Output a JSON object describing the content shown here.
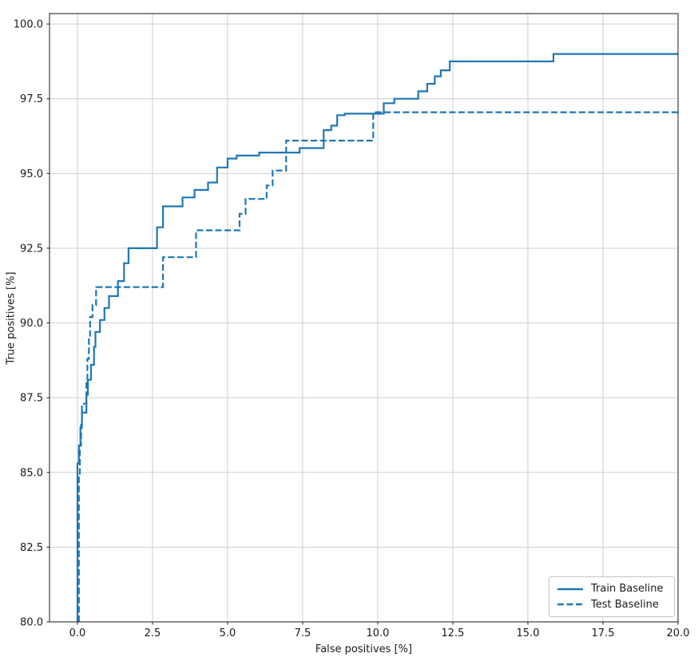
{
  "figure": {
    "xlabel": "False positives [%]",
    "ylabel": "True positives [%]"
  },
  "chart_data": {
    "type": "line",
    "title": "",
    "xlabel": "False positives [%]",
    "ylabel": "True positives [%]",
    "xlim": [
      -0.93,
      20
    ],
    "ylim": [
      80,
      100.35
    ],
    "grid": true,
    "grid_color": "#c9c9c9",
    "spine_color": "#1a1a1a",
    "color": "#1f77b4",
    "legend_position": "lower right",
    "xticks": [
      {
        "v": 0,
        "label": "0.0"
      },
      {
        "v": 2.5,
        "label": "2.5"
      },
      {
        "v": 5,
        "label": "5.0"
      },
      {
        "v": 7.5,
        "label": "7.5"
      },
      {
        "v": 10,
        "label": "10.0"
      },
      {
        "v": 12.5,
        "label": "12.5"
      },
      {
        "v": 15,
        "label": "15.0"
      },
      {
        "v": 17.5,
        "label": "17.5"
      },
      {
        "v": 20,
        "label": "20.0"
      }
    ],
    "yticks": [
      {
        "v": 80,
        "label": "80.0"
      },
      {
        "v": 82.5,
        "label": "82.5"
      },
      {
        "v": 85,
        "label": "85.0"
      },
      {
        "v": 87.5,
        "label": "87.5"
      },
      {
        "v": 90,
        "label": "90.0"
      },
      {
        "v": 92.5,
        "label": "92.5"
      },
      {
        "v": 95,
        "label": "95.0"
      },
      {
        "v": 97.5,
        "label": "97.5"
      },
      {
        "v": 100,
        "label": "100.0"
      }
    ],
    "series": [
      {
        "name": "Train Baseline",
        "style": "solid",
        "points": [
          [
            0,
            80
          ],
          [
            0,
            85.3
          ],
          [
            0.05,
            85.3
          ],
          [
            0.05,
            85.9
          ],
          [
            0.1,
            85.9
          ],
          [
            0.1,
            86.5
          ],
          [
            0.15,
            86.5
          ],
          [
            0.15,
            87.0
          ],
          [
            0.3,
            87.0
          ],
          [
            0.3,
            87.6
          ],
          [
            0.35,
            87.6
          ],
          [
            0.35,
            88.1
          ],
          [
            0.45,
            88.1
          ],
          [
            0.45,
            88.6
          ],
          [
            0.55,
            88.6
          ],
          [
            0.55,
            89.2
          ],
          [
            0.6,
            89.2
          ],
          [
            0.6,
            89.7
          ],
          [
            0.75,
            89.7
          ],
          [
            0.75,
            90.1
          ],
          [
            0.9,
            90.1
          ],
          [
            0.9,
            90.5
          ],
          [
            1.05,
            90.5
          ],
          [
            1.05,
            90.9
          ],
          [
            1.35,
            90.9
          ],
          [
            1.35,
            91.4
          ],
          [
            1.55,
            91.4
          ],
          [
            1.55,
            92.0
          ],
          [
            1.7,
            92.0
          ],
          [
            1.7,
            92.5
          ],
          [
            2.65,
            92.5
          ],
          [
            2.65,
            93.2
          ],
          [
            2.85,
            93.2
          ],
          [
            2.85,
            93.9
          ],
          [
            3.5,
            93.9
          ],
          [
            3.5,
            94.2
          ],
          [
            3.9,
            94.2
          ],
          [
            3.9,
            94.45
          ],
          [
            4.35,
            94.45
          ],
          [
            4.35,
            94.7
          ],
          [
            4.65,
            94.7
          ],
          [
            4.65,
            95.2
          ],
          [
            5.0,
            95.2
          ],
          [
            5.0,
            95.5
          ],
          [
            5.3,
            95.5
          ],
          [
            5.3,
            95.6
          ],
          [
            6.05,
            95.6
          ],
          [
            6.05,
            95.7
          ],
          [
            7.4,
            95.7
          ],
          [
            7.4,
            95.85
          ],
          [
            8.2,
            95.85
          ],
          [
            8.2,
            96.45
          ],
          [
            8.45,
            96.45
          ],
          [
            8.45,
            96.6
          ],
          [
            8.65,
            96.6
          ],
          [
            8.65,
            96.95
          ],
          [
            8.9,
            96.95
          ],
          [
            8.9,
            97.0
          ],
          [
            10.2,
            97.0
          ],
          [
            10.2,
            97.35
          ],
          [
            10.55,
            97.35
          ],
          [
            10.55,
            97.5
          ],
          [
            11.35,
            97.5
          ],
          [
            11.35,
            97.75
          ],
          [
            11.65,
            97.75
          ],
          [
            11.65,
            98.0
          ],
          [
            11.9,
            98.0
          ],
          [
            11.9,
            98.25
          ],
          [
            12.1,
            98.25
          ],
          [
            12.1,
            98.45
          ],
          [
            12.4,
            98.45
          ],
          [
            12.4,
            98.75
          ],
          [
            15.85,
            98.75
          ],
          [
            15.85,
            99.0
          ],
          [
            20,
            99.0
          ]
        ]
      },
      {
        "name": "Test Baseline",
        "style": "dashed",
        "points": [
          [
            0.05,
            80
          ],
          [
            0.05,
            84.9
          ],
          [
            0.08,
            84.9
          ],
          [
            0.08,
            85.9
          ],
          [
            0.12,
            85.9
          ],
          [
            0.12,
            86.6
          ],
          [
            0.15,
            86.6
          ],
          [
            0.15,
            87.3
          ],
          [
            0.3,
            87.3
          ],
          [
            0.3,
            88.1
          ],
          [
            0.33,
            88.1
          ],
          [
            0.33,
            88.8
          ],
          [
            0.38,
            88.8
          ],
          [
            0.38,
            89.5
          ],
          [
            0.42,
            89.5
          ],
          [
            0.42,
            90.2
          ],
          [
            0.5,
            90.2
          ],
          [
            0.5,
            90.6
          ],
          [
            0.62,
            90.6
          ],
          [
            0.62,
            91.2
          ],
          [
            2.85,
            91.2
          ],
          [
            2.85,
            92.2
          ],
          [
            3.95,
            92.2
          ],
          [
            3.95,
            93.1
          ],
          [
            5.4,
            93.1
          ],
          [
            5.4,
            93.65
          ],
          [
            5.6,
            93.65
          ],
          [
            5.6,
            94.15
          ],
          [
            6.3,
            94.15
          ],
          [
            6.3,
            94.6
          ],
          [
            6.5,
            94.6
          ],
          [
            6.5,
            95.1
          ],
          [
            6.95,
            95.1
          ],
          [
            6.95,
            96.1
          ],
          [
            9.85,
            96.1
          ],
          [
            9.85,
            97.05
          ],
          [
            20,
            97.05
          ]
        ]
      }
    ]
  }
}
